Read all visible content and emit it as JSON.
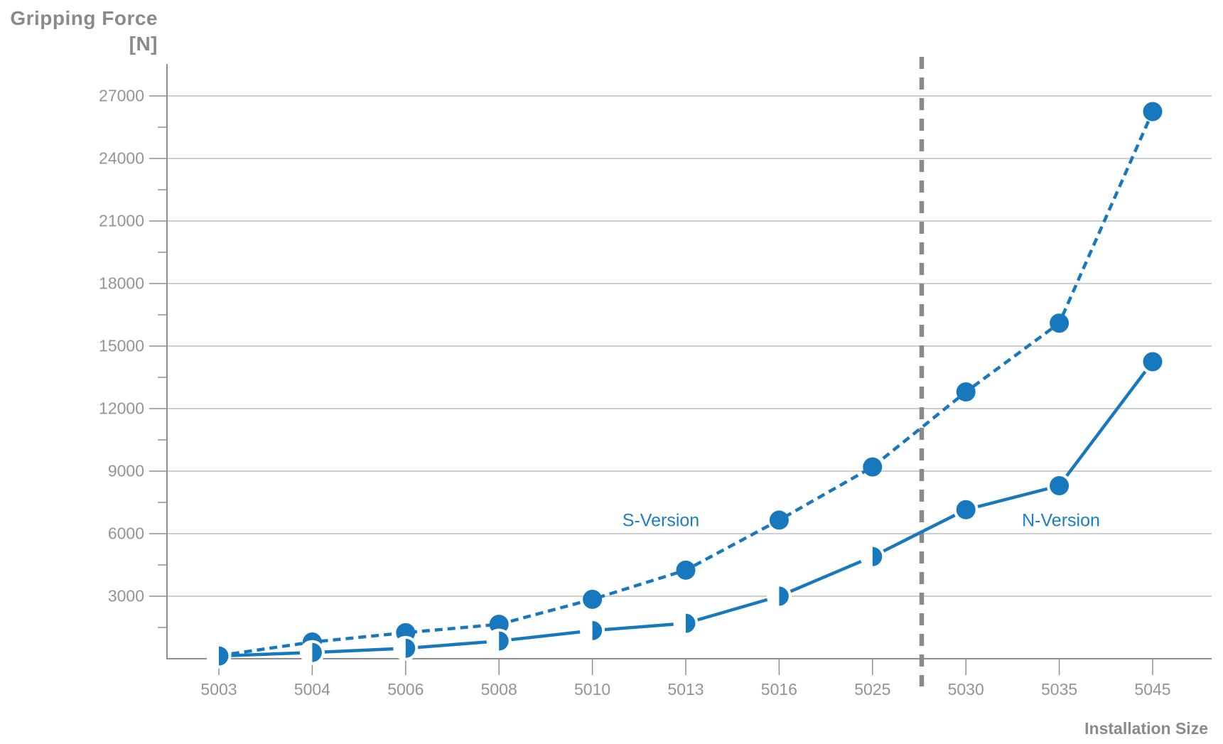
{
  "title": {
    "line1": "Gripping Force",
    "line2": "[N]"
  },
  "x_axis_title": "Installation Size",
  "series_labels": {
    "s": "S-Version",
    "n": "N-Version"
  },
  "colors": {
    "blue": "#1878be",
    "label_blue": "#1c7dc4",
    "gray_text": "#8a8a8a",
    "tick_text": "#949494",
    "grid": "#b0b0b0",
    "axis": "#8f8f8f",
    "separator": "#8a8a8a"
  },
  "chart_data": {
    "type": "line",
    "title": "Gripping Force [N] vs Installation Size",
    "xlabel": "Installation Size",
    "ylabel": "Gripping Force [N]",
    "categories": [
      "5003",
      "5004",
      "5006",
      "5008",
      "5010",
      "5013",
      "5016",
      "5025",
      "5030",
      "5035",
      "5045"
    ],
    "y_ticks": [
      3000,
      6000,
      9000,
      12000,
      15000,
      18000,
      21000,
      24000,
      27000
    ],
    "y_tick_labels": [
      "3000",
      "6000",
      "9000",
      "12000",
      "15000",
      "18000",
      "21000",
      "24000",
      "27000"
    ],
    "y_minor_ticks": [
      1500,
      4500,
      7500,
      10500,
      13500,
      16500,
      19500,
      22500,
      25500
    ],
    "ylim": [
      0,
      28500
    ],
    "grid": "horizontal-major",
    "legend_position": "inline-labels",
    "separator_between": [
      "5025",
      "5030"
    ],
    "series": [
      {
        "name": "S-Version",
        "line_style": "dashed",
        "values": [
          150,
          800,
          1250,
          1650,
          2850,
          4250,
          6650,
          9200,
          12800,
          16100,
          26250
        ],
        "markers": [
          "filled",
          "filled",
          "filled",
          "filled",
          "filled",
          "filled",
          "filled",
          "filled",
          "filled",
          "filled",
          "filled"
        ]
      },
      {
        "name": "N-Version",
        "line_style": "solid",
        "values": [
          130,
          300,
          500,
          850,
          1350,
          1700,
          3000,
          4900,
          7150,
          8300,
          14250
        ],
        "markers": [
          "half",
          "half",
          "half",
          "half",
          "half",
          "half",
          "half",
          "half",
          "filled",
          "filled",
          "filled"
        ]
      }
    ]
  }
}
